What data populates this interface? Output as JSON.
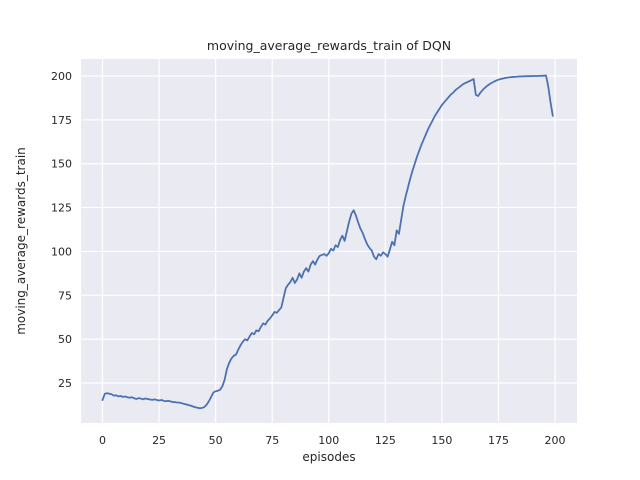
{
  "colors": {
    "figure_background": "#ffffff",
    "plot_background": "#eaeaf2",
    "gridline": "#ffffff",
    "line": "#4c72b0",
    "text": "#262626"
  },
  "chart_data": {
    "type": "line",
    "title": "moving_average_rewards_train of DQN",
    "xlabel": "episodes",
    "ylabel": "moving_average_rewards_train",
    "x_ticks": [
      0,
      25,
      50,
      75,
      100,
      125,
      150,
      175,
      200
    ],
    "y_ticks": [
      25,
      50,
      75,
      100,
      125,
      150,
      175,
      200
    ],
    "xlim": [
      -9.5,
      209.7
    ],
    "ylim": [
      2.2,
      209.7
    ],
    "grid": true,
    "legend": "none",
    "series": [
      {
        "name": "DQN moving average rewards (train)",
        "color": "#4c72b0",
        "points": [
          [
            0,
            15.3
          ],
          [
            1,
            18.8
          ],
          [
            2,
            19.2
          ],
          [
            3,
            18.9
          ],
          [
            4,
            18.6
          ],
          [
            5,
            17.8
          ],
          [
            6,
            18.0
          ],
          [
            7,
            17.4
          ],
          [
            8,
            17.6
          ],
          [
            9,
            17.1
          ],
          [
            10,
            17.3
          ],
          [
            11,
            16.9
          ],
          [
            12,
            16.6
          ],
          [
            13,
            16.9
          ],
          [
            14,
            16.3
          ],
          [
            15,
            15.9
          ],
          [
            16,
            16.4
          ],
          [
            17,
            16.1
          ],
          [
            18,
            15.7
          ],
          [
            19,
            16.2
          ],
          [
            20,
            15.9
          ],
          [
            21,
            15.6
          ],
          [
            22,
            15.4
          ],
          [
            23,
            15.7
          ],
          [
            24,
            15.3
          ],
          [
            25,
            15.0
          ],
          [
            26,
            15.3
          ],
          [
            27,
            14.9
          ],
          [
            28,
            14.6
          ],
          [
            29,
            14.9
          ],
          [
            30,
            14.5
          ],
          [
            31,
            14.2
          ],
          [
            32,
            14.1
          ],
          [
            33,
            13.9
          ],
          [
            34,
            13.8
          ],
          [
            35,
            13.5
          ],
          [
            36,
            13.1
          ],
          [
            37,
            12.8
          ],
          [
            38,
            12.4
          ],
          [
            39,
            12.1
          ],
          [
            40,
            11.6
          ],
          [
            41,
            11.2
          ],
          [
            42,
            10.9
          ],
          [
            43,
            10.6
          ],
          [
            44,
            10.8
          ],
          [
            45,
            11.3
          ],
          [
            46,
            12.6
          ],
          [
            47,
            14.6
          ],
          [
            48,
            17.0
          ],
          [
            49,
            19.6
          ],
          [
            50,
            20.3
          ],
          [
            51,
            20.6
          ],
          [
            52,
            21.2
          ],
          [
            53,
            23.2
          ],
          [
            54,
            27.0
          ],
          [
            55,
            33.0
          ],
          [
            56,
            36.5
          ],
          [
            57,
            39.0
          ],
          [
            58,
            40.5
          ],
          [
            59,
            41.2
          ],
          [
            60,
            44.0
          ],
          [
            61,
            46.5
          ],
          [
            62,
            48.5
          ],
          [
            63,
            50.0
          ],
          [
            64,
            49.3
          ],
          [
            65,
            51.5
          ],
          [
            66,
            53.5
          ],
          [
            67,
            52.8
          ],
          [
            68,
            55.0
          ],
          [
            69,
            54.5
          ],
          [
            70,
            57.0
          ],
          [
            71,
            59.0
          ],
          [
            72,
            58.3
          ],
          [
            73,
            60.5
          ],
          [
            74,
            61.8
          ],
          [
            75,
            63.5
          ],
          [
            76,
            65.5
          ],
          [
            77,
            65.0
          ],
          [
            78,
            66.5
          ],
          [
            79,
            68.0
          ],
          [
            80,
            73.5
          ],
          [
            81,
            79.0
          ],
          [
            82,
            81.0
          ],
          [
            83,
            82.5
          ],
          [
            84,
            85.0
          ],
          [
            85,
            82.0
          ],
          [
            86,
            84.0
          ],
          [
            87,
            87.5
          ],
          [
            88,
            85.0
          ],
          [
            89,
            88.5
          ],
          [
            90,
            90.5
          ],
          [
            91,
            88.5
          ],
          [
            92,
            92.5
          ],
          [
            93,
            94.5
          ],
          [
            94,
            92.5
          ],
          [
            95,
            95.5
          ],
          [
            96,
            97.5
          ],
          [
            97,
            98.0
          ],
          [
            98,
            98.5
          ],
          [
            99,
            97.5
          ],
          [
            100,
            99.0
          ],
          [
            101,
            101.5
          ],
          [
            102,
            100.5
          ],
          [
            103,
            103.5
          ],
          [
            104,
            102.5
          ],
          [
            105,
            106.5
          ],
          [
            106,
            109.0
          ],
          [
            107,
            106.0
          ],
          [
            108,
            111.5
          ],
          [
            109,
            117.0
          ],
          [
            110,
            121.5
          ],
          [
            111,
            123.5
          ],
          [
            112,
            120.5
          ],
          [
            113,
            116.5
          ],
          [
            114,
            113.0
          ],
          [
            115,
            110.5
          ],
          [
            116,
            107.0
          ],
          [
            117,
            104.0
          ],
          [
            118,
            102.0
          ],
          [
            119,
            100.5
          ],
          [
            120,
            97.0
          ],
          [
            121,
            95.5
          ],
          [
            122,
            98.5
          ],
          [
            123,
            97.5
          ],
          [
            124,
            99.5
          ],
          [
            125,
            98.5
          ],
          [
            126,
            97.0
          ],
          [
            127,
            101.0
          ],
          [
            128,
            105.5
          ],
          [
            129,
            103.5
          ],
          [
            130,
            112.0
          ],
          [
            131,
            110.0
          ],
          [
            132,
            118.0
          ],
          [
            133,
            126.0
          ],
          [
            134,
            131.5
          ],
          [
            135,
            136.5
          ],
          [
            136,
            141.5
          ],
          [
            137,
            146.0
          ],
          [
            138,
            150.0
          ],
          [
            139,
            154.0
          ],
          [
            140,
            157.5
          ],
          [
            141,
            161.0
          ],
          [
            142,
            164.0
          ],
          [
            143,
            167.0
          ],
          [
            144,
            170.0
          ],
          [
            145,
            172.5
          ],
          [
            146,
            175.0
          ],
          [
            147,
            177.5
          ],
          [
            148,
            179.5
          ],
          [
            149,
            181.5
          ],
          [
            150,
            183.5
          ],
          [
            151,
            185.0
          ],
          [
            152,
            186.5
          ],
          [
            153,
            188.0
          ],
          [
            154,
            189.5
          ],
          [
            155,
            190.5
          ],
          [
            156,
            192.0
          ],
          [
            157,
            193.0
          ],
          [
            158,
            194.0
          ],
          [
            159,
            195.0
          ],
          [
            160,
            195.8
          ],
          [
            161,
            196.4
          ],
          [
            162,
            197.0
          ],
          [
            163,
            197.6
          ],
          [
            164,
            198.3
          ],
          [
            165,
            189.3
          ],
          [
            166,
            188.6
          ],
          [
            167,
            190.5
          ],
          [
            168,
            192.0
          ],
          [
            169,
            193.3
          ],
          [
            170,
            194.4
          ],
          [
            171,
            195.3
          ],
          [
            172,
            196.1
          ],
          [
            173,
            196.8
          ],
          [
            174,
            197.4
          ],
          [
            175,
            197.9
          ],
          [
            176,
            198.3
          ],
          [
            177,
            198.6
          ],
          [
            178,
            198.9
          ],
          [
            179,
            199.1
          ],
          [
            180,
            199.3
          ],
          [
            181,
            199.4
          ],
          [
            182,
            199.5
          ],
          [
            183,
            199.6
          ],
          [
            184,
            199.7
          ],
          [
            185,
            199.8
          ],
          [
            186,
            199.8
          ],
          [
            187,
            199.9
          ],
          [
            188,
            199.9
          ],
          [
            189,
            199.9
          ],
          [
            190,
            200.0
          ],
          [
            191,
            200.0
          ],
          [
            192,
            200.0
          ],
          [
            193,
            200.1
          ],
          [
            194,
            200.1
          ],
          [
            195,
            200.2
          ],
          [
            196,
            200.3
          ],
          [
            197,
            194.0
          ],
          [
            198,
            185.0
          ],
          [
            199,
            177.3
          ]
        ]
      }
    ]
  }
}
